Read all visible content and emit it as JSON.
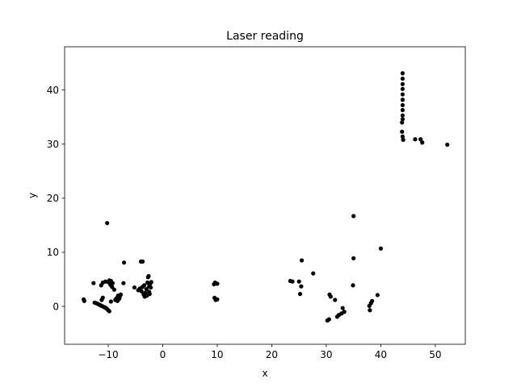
{
  "chart_data": {
    "type": "scatter",
    "title": "Laser reading",
    "xlabel": "x",
    "ylabel": "y",
    "xlim": [
      -18,
      55.5
    ],
    "ylim": [
      -7,
      48
    ],
    "xticks": [
      -10,
      0,
      10,
      20,
      30,
      40,
      50
    ],
    "yticks": [
      0,
      10,
      20,
      30,
      40
    ],
    "grid": false,
    "marker_color": "#000000",
    "points": [
      {
        "x": -14.5,
        "y": 1.3
      },
      {
        "x": -14.4,
        "y": 1.0
      },
      {
        "x": -12.7,
        "y": 4.3
      },
      {
        "x": -12.5,
        "y": 0.7
      },
      {
        "x": -12.2,
        "y": 0.6
      },
      {
        "x": -12.0,
        "y": 0.5
      },
      {
        "x": -11.8,
        "y": 0.4
      },
      {
        "x": -11.6,
        "y": 0.3
      },
      {
        "x": -11.4,
        "y": 0.2
      },
      {
        "x": -11.2,
        "y": 0.1
      },
      {
        "x": -11.0,
        "y": 0.0
      },
      {
        "x": -10.8,
        "y": -0.1
      },
      {
        "x": -10.6,
        "y": -0.2
      },
      {
        "x": -10.4,
        "y": -0.3
      },
      {
        "x": -10.2,
        "y": -0.5
      },
      {
        "x": -10.0,
        "y": -0.7
      },
      {
        "x": -9.8,
        "y": -0.9
      },
      {
        "x": -11.3,
        "y": 3.9
      },
      {
        "x": -11.0,
        "y": 4.4
      },
      {
        "x": -11.2,
        "y": 1.2
      },
      {
        "x": -11.0,
        "y": 1.6
      },
      {
        "x": -10.5,
        "y": 4.6
      },
      {
        "x": -10.0,
        "y": 4.5
      },
      {
        "x": -9.8,
        "y": 4.8
      },
      {
        "x": -9.5,
        "y": 4.7
      },
      {
        "x": -9.6,
        "y": 4.0
      },
      {
        "x": -9.2,
        "y": 4.3
      },
      {
        "x": -9.3,
        "y": 3.6
      },
      {
        "x": -9.5,
        "y": 0.9
      },
      {
        "x": -8.9,
        "y": 3.1
      },
      {
        "x": -8.7,
        "y": 1.2
      },
      {
        "x": -8.5,
        "y": 1.5
      },
      {
        "x": -8.3,
        "y": 1.0
      },
      {
        "x": -8.0,
        "y": 1.4
      },
      {
        "x": -8.2,
        "y": 2.0
      },
      {
        "x": -7.9,
        "y": 1.7
      },
      {
        "x": -7.7,
        "y": 2.2
      },
      {
        "x": -7.2,
        "y": 4.3
      },
      {
        "x": -7.1,
        "y": 8.1
      },
      {
        "x": -10.2,
        "y": 15.4
      },
      {
        "x": -5.2,
        "y": 3.5
      },
      {
        "x": -4.5,
        "y": 3.0
      },
      {
        "x": -4.2,
        "y": 3.3
      },
      {
        "x": -4.0,
        "y": 8.3
      },
      {
        "x": -3.7,
        "y": 8.3
      },
      {
        "x": -3.9,
        "y": 2.8
      },
      {
        "x": -3.7,
        "y": 3.6
      },
      {
        "x": -3.5,
        "y": 2.2
      },
      {
        "x": -3.4,
        "y": 3.9
      },
      {
        "x": -3.3,
        "y": 1.8
      },
      {
        "x": -3.2,
        "y": 2.5
      },
      {
        "x": -3.0,
        "y": 3.2
      },
      {
        "x": -2.9,
        "y": 2.0
      },
      {
        "x": -2.8,
        "y": 4.4
      },
      {
        "x": -2.7,
        "y": 5.4
      },
      {
        "x": -2.6,
        "y": 5.6
      },
      {
        "x": -2.5,
        "y": 3.7
      },
      {
        "x": -2.5,
        "y": 2.7
      },
      {
        "x": -2.3,
        "y": 4.2
      },
      {
        "x": -2.2,
        "y": 3.5
      },
      {
        "x": -2.4,
        "y": 2.3
      },
      {
        "x": -2.1,
        "y": 4.5
      },
      {
        "x": 9.4,
        "y": 4.1
      },
      {
        "x": 9.6,
        "y": 4.4
      },
      {
        "x": 10.0,
        "y": 4.2
      },
      {
        "x": 9.5,
        "y": 1.6
      },
      {
        "x": 9.7,
        "y": 1.2
      },
      {
        "x": 10.0,
        "y": 1.3
      },
      {
        "x": 23.4,
        "y": 4.7
      },
      {
        "x": 23.8,
        "y": 4.6
      },
      {
        "x": 25.0,
        "y": 4.6
      },
      {
        "x": 25.2,
        "y": 2.3
      },
      {
        "x": 25.4,
        "y": 3.7
      },
      {
        "x": 25.5,
        "y": 8.5
      },
      {
        "x": 27.6,
        "y": 6.1
      },
      {
        "x": 30.2,
        "y": -2.6
      },
      {
        "x": 30.5,
        "y": -2.4
      },
      {
        "x": 30.6,
        "y": 2.2
      },
      {
        "x": 30.8,
        "y": 1.8
      },
      {
        "x": 31.6,
        "y": 1.2
      },
      {
        "x": 32.0,
        "y": -1.9
      },
      {
        "x": 32.3,
        "y": -1.6
      },
      {
        "x": 32.8,
        "y": -1.3
      },
      {
        "x": 33.0,
        "y": -0.3
      },
      {
        "x": 33.3,
        "y": -1.0
      },
      {
        "x": 34.9,
        "y": 3.9
      },
      {
        "x": 35.0,
        "y": 8.9
      },
      {
        "x": 35.0,
        "y": 16.7
      },
      {
        "x": 37.9,
        "y": 0.1
      },
      {
        "x": 38.0,
        "y": -0.7
      },
      {
        "x": 38.2,
        "y": 0.6
      },
      {
        "x": 38.4,
        "y": 1.0
      },
      {
        "x": 39.4,
        "y": 2.1
      },
      {
        "x": 40.0,
        "y": 10.7
      },
      {
        "x": 44.0,
        "y": 43.1
      },
      {
        "x": 44.0,
        "y": 42.1
      },
      {
        "x": 44.0,
        "y": 41.1
      },
      {
        "x": 44.0,
        "y": 40.2
      },
      {
        "x": 44.0,
        "y": 39.2
      },
      {
        "x": 44.0,
        "y": 38.2
      },
      {
        "x": 44.0,
        "y": 37.2
      },
      {
        "x": 44.0,
        "y": 36.3
      },
      {
        "x": 44.0,
        "y": 35.3
      },
      {
        "x": 43.9,
        "y": 34.0
      },
      {
        "x": 44.0,
        "y": 34.6
      },
      {
        "x": 43.9,
        "y": 32.3
      },
      {
        "x": 44.0,
        "y": 31.4
      },
      {
        "x": 44.1,
        "y": 30.8
      },
      {
        "x": 46.3,
        "y": 30.9
      },
      {
        "x": 47.3,
        "y": 30.9
      },
      {
        "x": 47.6,
        "y": 30.3
      },
      {
        "x": 52.2,
        "y": 29.9
      }
    ]
  }
}
